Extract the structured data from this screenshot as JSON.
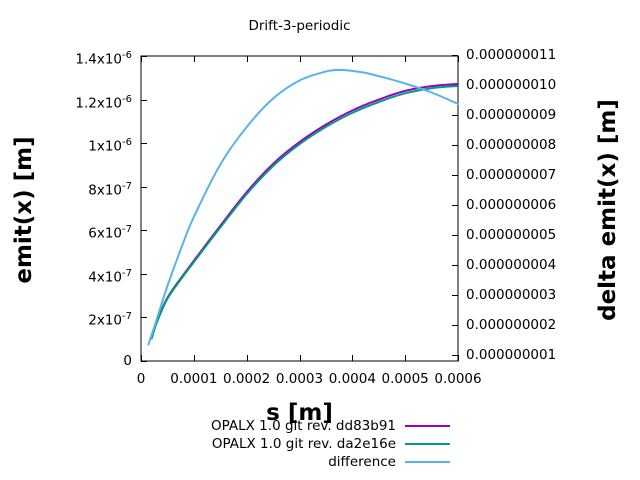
{
  "chart": {
    "title": "Drift-3-periodic",
    "xlabel": "s [m]",
    "ylabel_left": "emit(x) [m]",
    "ylabel_right": "delta emit(x) [m]"
  },
  "chart_data": {
    "type": "line",
    "title": "Drift-3-periodic",
    "xlabel": "s [m]",
    "ylabel_left": "emit(x) [m]",
    "ylabel_right": "delta emit(x) [m]",
    "grid": false,
    "legend_position": "below-center",
    "background": "#ffffff",
    "border_color": "#000000",
    "x_range": [
      0,
      0.0006
    ],
    "y_left_range": [
      0,
      1.4e-06
    ],
    "y_right_range": [
      8e-10,
      1.0967e-08
    ],
    "x_ticks": [
      {
        "value": 0,
        "label": "0"
      },
      {
        "value": 0.0001,
        "label": "0.0001"
      },
      {
        "value": 0.0002,
        "label": "0.0002"
      },
      {
        "value": 0.0003,
        "label": "0.0003"
      },
      {
        "value": 0.0004,
        "label": "0.0004"
      },
      {
        "value": 0.0005,
        "label": "0.0005"
      },
      {
        "value": 0.0006,
        "label": "0.0006"
      }
    ],
    "y_left_ticks": [
      {
        "value": 0,
        "mantissa": "0",
        "exp": ""
      },
      {
        "value": 2e-07,
        "mantissa": "2x10",
        "exp": "-7"
      },
      {
        "value": 4e-07,
        "mantissa": "4x10",
        "exp": "-7"
      },
      {
        "value": 6e-07,
        "mantissa": "6x10",
        "exp": "-7"
      },
      {
        "value": 8e-07,
        "mantissa": "8x10",
        "exp": "-7"
      },
      {
        "value": 1e-06,
        "mantissa": "1x10",
        "exp": "-6"
      },
      {
        "value": 1.2e-06,
        "mantissa": "1.2x10",
        "exp": "-6"
      },
      {
        "value": 1.4e-06,
        "mantissa": "1.4x10",
        "exp": "-6"
      }
    ],
    "y_right_ticks": [
      {
        "value": 1e-09,
        "label": "0.000000001"
      },
      {
        "value": 2e-09,
        "label": "0.000000002"
      },
      {
        "value": 3e-09,
        "label": "0.000000003"
      },
      {
        "value": 4e-09,
        "label": "0.000000004"
      },
      {
        "value": 5e-09,
        "label": "0.000000005"
      },
      {
        "value": 6e-09,
        "label": "0.000000006"
      },
      {
        "value": 7e-09,
        "label": "0.000000007"
      },
      {
        "value": 8e-09,
        "label": "0.000000008"
      },
      {
        "value": 9e-09,
        "label": "0.000000009"
      },
      {
        "value": 1e-08,
        "label": "0.000000010"
      },
      {
        "value": 1.1e-08,
        "label": "0.000000011"
      }
    ],
    "series": [
      {
        "id": "opalx-dd83b91",
        "name": "OPALX 1.0 git rev. dd83b91",
        "color": "#9400d3",
        "axis": "left",
        "points": [
          [
            2e-05,
            1.05e-07
          ],
          [
            3e-05,
            1.8e-07
          ],
          [
            5e-05,
            2.9e-07
          ],
          [
            8e-05,
            3.95e-07
          ],
          [
            0.0001,
            4.6e-07
          ],
          [
            0.00015,
            6.2e-07
          ],
          [
            0.0002,
            7.75e-07
          ],
          [
            0.00025,
            9.05e-07
          ],
          [
            0.0003,
            1.005e-06
          ],
          [
            0.00035,
            1.085e-06
          ],
          [
            0.0004,
            1.15e-06
          ],
          [
            0.00045,
            1.2e-06
          ],
          [
            0.0005,
            1.24e-06
          ],
          [
            0.00055,
            1.262e-06
          ],
          [
            0.0006,
            1.272e-06
          ]
        ]
      },
      {
        "id": "opalx-da2e16e",
        "name": "OPALX 1.0 git rev. da2e16e",
        "color": "#009e73",
        "axis": "left",
        "points": [
          [
            2e-05,
            1.03e-07
          ],
          [
            3e-05,
            1.77e-07
          ],
          [
            5e-05,
            2.86e-07
          ],
          [
            8e-05,
            3.9e-07
          ],
          [
            0.0001,
            4.54e-07
          ],
          [
            0.00015,
            6.13e-07
          ],
          [
            0.0002,
            7.66e-07
          ],
          [
            0.00025,
            8.95e-07
          ],
          [
            0.0003,
            9.95e-07
          ],
          [
            0.00035,
            1.0745e-06
          ],
          [
            0.0004,
            1.139e-06
          ],
          [
            0.00045,
            1.189e-06
          ],
          [
            0.0005,
            1.229e-06
          ],
          [
            0.00055,
            1.252e-06
          ],
          [
            0.0006,
            1.2625e-06
          ]
        ]
      },
      {
        "id": "difference",
        "name": "difference",
        "color": "#56b4e9",
        "axis": "right",
        "points": [
          [
            1.4e-05,
            1.35e-09
          ],
          [
            3e-05,
            2.2e-09
          ],
          [
            5e-05,
            3.3e-09
          ],
          [
            8e-05,
            4.75e-09
          ],
          [
            0.0001,
            5.6e-09
          ],
          [
            0.00015,
            7.35e-09
          ],
          [
            0.0002,
            8.6e-09
          ],
          [
            0.00025,
            9.55e-09
          ],
          [
            0.0003,
            1.015e-08
          ],
          [
            0.00035,
            1.045e-08
          ],
          [
            0.00038,
            1.05e-08
          ],
          [
            0.00042,
            1.042e-08
          ],
          [
            0.00046,
            1.025e-08
          ],
          [
            0.0005,
            1.005e-08
          ],
          [
            0.00055,
            9.75e-09
          ],
          [
            0.0006,
            9.37e-09
          ]
        ]
      }
    ]
  }
}
